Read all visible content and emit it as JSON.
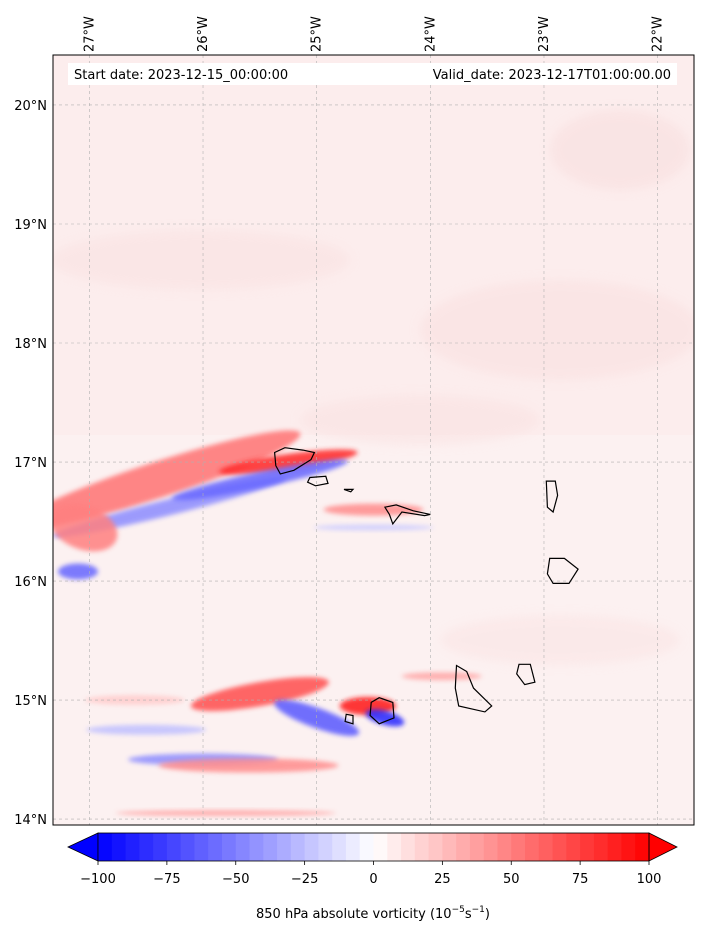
{
  "chart_data": {
    "type": "heatmap",
    "annotations": {
      "start_date": "Start date: 2023-12-15_00:00:00",
      "valid_date": "Valid_date: 2023-12-17T01:00:00.00"
    },
    "x_axis": {
      "position": "top",
      "ticks": [
        -27,
        -26,
        -25,
        -24,
        -23,
        -22
      ],
      "tick_labels": [
        "27°W",
        "26°W",
        "25°W",
        "24°W",
        "23°W",
        "22°W"
      ],
      "range": [
        -27.32,
        -21.68
      ]
    },
    "y_axis": {
      "position": "left",
      "ticks": [
        14,
        15,
        16,
        17,
        18,
        19,
        20
      ],
      "tick_labels": [
        "14°N",
        "15°N",
        "16°N",
        "17°N",
        "18°N",
        "19°N",
        "20°N"
      ],
      "range": [
        13.95,
        20.42
      ]
    },
    "grid": true,
    "colorbar": {
      "label": "850 hPa absolute vorticity (10",
      "label_exp1": "−5",
      "label_mid": "s",
      "label_exp2": "−1",
      "label_end": ")",
      "range": [
        -100,
        100
      ],
      "extend": "both",
      "colormap": "bwr",
      "ticks": [
        -100,
        -75,
        -50,
        -25,
        0,
        25,
        50,
        75,
        100
      ],
      "tick_labels": [
        "−100",
        "−75",
        "−50",
        "−25",
        "0",
        "25",
        "50",
        "75",
        "100"
      ],
      "low_color": "#0000ff",
      "mid_color": "#ffffff",
      "high_color": "#ff0000"
    },
    "features": [
      {
        "kind": "positive",
        "lon": -26.4,
        "lat": 16.85,
        "value": 55
      },
      {
        "kind": "negative",
        "lon": -26.3,
        "lat": 16.62,
        "value": -45
      },
      {
        "kind": "positive",
        "lon": -25.25,
        "lat": 17.0,
        "value": 85
      },
      {
        "kind": "negative",
        "lon": -25.5,
        "lat": 16.85,
        "value": -60
      },
      {
        "kind": "positive",
        "lon": -27.05,
        "lat": 16.45,
        "value": 50
      },
      {
        "kind": "negative",
        "lon": -27.1,
        "lat": 16.08,
        "value": -60
      },
      {
        "kind": "positive",
        "lon": -24.5,
        "lat": 16.6,
        "value": 45
      },
      {
        "kind": "negative",
        "lon": -24.5,
        "lat": 16.45,
        "value": -20
      },
      {
        "kind": "positive",
        "lon": -25.5,
        "lat": 15.05,
        "value": 70
      },
      {
        "kind": "negative",
        "lon": -25.0,
        "lat": 14.85,
        "value": -65
      },
      {
        "kind": "positive",
        "lon": -24.55,
        "lat": 14.95,
        "value": 90
      },
      {
        "kind": "negative",
        "lon": -24.4,
        "lat": 14.85,
        "value": -85
      },
      {
        "kind": "negative",
        "lon": -26.0,
        "lat": 14.5,
        "value": -45
      },
      {
        "kind": "positive",
        "lon": -25.6,
        "lat": 14.45,
        "value": 45
      },
      {
        "kind": "positive",
        "lon": -25.8,
        "lat": 14.05,
        "value": 35
      },
      {
        "kind": "positive",
        "lon": -23.9,
        "lat": 15.2,
        "value": 35
      },
      {
        "kind": "negative",
        "lon": -26.5,
        "lat": 14.75,
        "value": -25
      },
      {
        "kind": "positive",
        "lon": -26.6,
        "lat": 15.0,
        "value": 20
      }
    ],
    "islands": [
      "Santo Antão",
      "São Vicente",
      "Santa Luzia",
      "São Nicolau",
      "Sal",
      "Boa Vista",
      "Maio",
      "Santiago",
      "Fogo",
      "Brava"
    ]
  }
}
